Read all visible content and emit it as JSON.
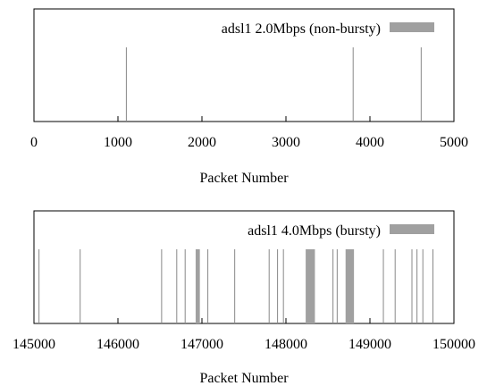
{
  "chart_data": [
    {
      "type": "bar",
      "legend_label": "adsl1 2.0Mbps (non-bursty)",
      "legend_placement": "top-right",
      "xlabel": "Packet Number",
      "ylabel": "",
      "xlim": [
        0,
        5000
      ],
      "xticks": [
        0,
        1000,
        2000,
        3000,
        4000,
        5000
      ],
      "xtick_labels": [
        "0",
        "1000",
        "2000",
        "3000",
        "4000",
        "5000"
      ],
      "grid": false,
      "color": "#a0a0a0",
      "events": [
        {
          "x": 1100,
          "width": 0
        },
        {
          "x": 3800,
          "width": 0
        },
        {
          "x": 4610,
          "width": 0
        }
      ]
    },
    {
      "type": "bar",
      "legend_label": "adsl1 4.0Mbps (bursty)",
      "legend_placement": "top-right",
      "xlabel": "Packet Number",
      "ylabel": "",
      "xlim": [
        145000,
        150000
      ],
      "xticks": [
        145000,
        146000,
        147000,
        148000,
        149000,
        150000
      ],
      "xtick_labels": [
        "145000",
        "146000",
        "147000",
        "148000",
        "149000",
        "150000"
      ],
      "grid": false,
      "color": "#a0a0a0",
      "events": [
        {
          "x": 145060,
          "width": 0
        },
        {
          "x": 145550,
          "width": 0
        },
        {
          "x": 146520,
          "width": 0
        },
        {
          "x": 146700,
          "width": 0
        },
        {
          "x": 146800,
          "width": 0
        },
        {
          "x": 146925,
          "width": 50
        },
        {
          "x": 147070,
          "width": 0
        },
        {
          "x": 147390,
          "width": 0
        },
        {
          "x": 147800,
          "width": 0
        },
        {
          "x": 147900,
          "width": 0
        },
        {
          "x": 147970,
          "width": 0
        },
        {
          "x": 148235,
          "width": 110
        },
        {
          "x": 148560,
          "width": 0
        },
        {
          "x": 148610,
          "width": 0
        },
        {
          "x": 148710,
          "width": 100
        },
        {
          "x": 149160,
          "width": 0
        },
        {
          "x": 149300,
          "width": 0
        },
        {
          "x": 149500,
          "width": 0
        },
        {
          "x": 149560,
          "width": 0
        },
        {
          "x": 149630,
          "width": 0
        },
        {
          "x": 149750,
          "width": 0
        }
      ]
    }
  ]
}
